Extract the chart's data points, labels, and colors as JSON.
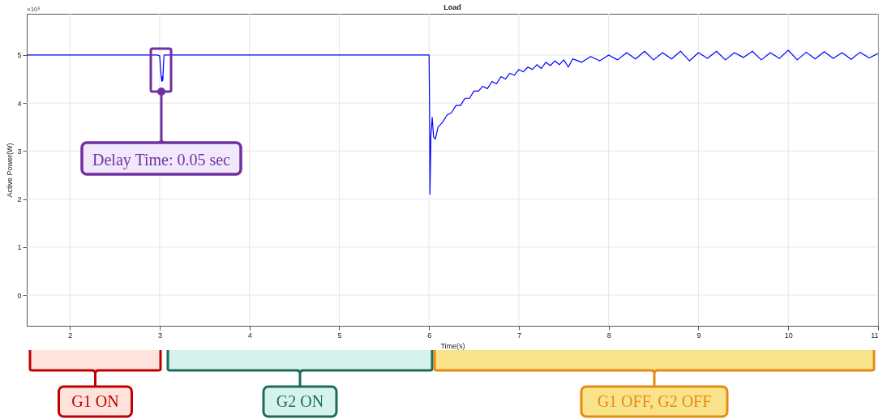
{
  "chart_data": {
    "type": "line",
    "title": "Load",
    "xlabel": "Time(s)",
    "ylabel": "Active Power(W)",
    "xlim": [
      1.52,
      11
    ],
    "xticks": [
      2,
      3,
      4,
      5,
      6,
      7,
      8,
      9,
      10,
      11
    ],
    "ylim": [
      -0.64,
      5.86
    ],
    "yticks": [
      0,
      1,
      2,
      3,
      4,
      5
    ],
    "grid": true,
    "series": [
      {
        "color": "#0000ff",
        "x": [
          1.52,
          2.98,
          3.0,
          3.015,
          3.025,
          3.03,
          3.035,
          3.045,
          3.05,
          6.0,
          6.005,
          6.01,
          6.02,
          6.035,
          6.05,
          6.07,
          6.1,
          6.15,
          6.2,
          6.25,
          6.3,
          6.35,
          6.4,
          6.45,
          6.5,
          6.55,
          6.6,
          6.65,
          6.7,
          6.75,
          6.8,
          6.85,
          6.9,
          6.95,
          7.0,
          7.05,
          7.1,
          7.15,
          7.2,
          7.25,
          7.3,
          7.35,
          7.4,
          7.45,
          7.5,
          7.55,
          7.6,
          7.7,
          7.8,
          7.9,
          8.0,
          8.1,
          8.2,
          8.3,
          8.4,
          8.5,
          8.6,
          8.7,
          8.8,
          8.9,
          9.0,
          9.1,
          9.2,
          9.3,
          9.4,
          9.5,
          9.6,
          9.7,
          9.8,
          9.9,
          10.0,
          10.1,
          10.2,
          10.3,
          10.4,
          10.5,
          10.6,
          10.7,
          10.8,
          10.9,
          11.0
        ],
        "values": [
          5.0,
          5.0,
          4.98,
          4.6,
          4.45,
          4.55,
          4.47,
          4.9,
          5.0,
          5.0,
          4.0,
          2.1,
          3.3,
          3.7,
          3.3,
          3.25,
          3.5,
          3.6,
          3.75,
          3.8,
          3.95,
          3.95,
          4.1,
          4.1,
          4.25,
          4.25,
          4.35,
          4.3,
          4.45,
          4.4,
          4.55,
          4.5,
          4.62,
          4.58,
          4.7,
          4.65,
          4.75,
          4.7,
          4.8,
          4.72,
          4.85,
          4.78,
          4.88,
          4.8,
          4.9,
          4.75,
          4.92,
          4.85,
          4.97,
          4.88,
          5.0,
          4.9,
          5.05,
          4.92,
          5.08,
          4.9,
          5.05,
          4.92,
          5.08,
          4.88,
          5.05,
          4.93,
          5.08,
          4.9,
          5.05,
          4.95,
          5.08,
          4.9,
          5.05,
          4.93,
          5.1,
          4.9,
          5.06,
          4.92,
          5.07,
          4.93,
          5.05,
          4.91,
          5.06,
          4.94,
          5.03
        ]
      }
    ],
    "annotations": [
      "×10⁵",
      "Delay Time: 0.05 sec",
      "G1 ON",
      "G2 ON",
      "G1 OFF, G2 OFF"
    ]
  }
}
